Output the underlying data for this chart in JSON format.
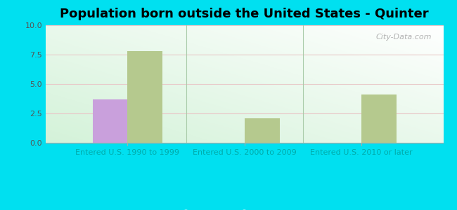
{
  "title": "Population born outside the United States - Quinter",
  "categories": [
    "Entered U.S. 1990 to 1999",
    "Entered U.S. 2000 to 2009",
    "Entered U.S. 2010 or later"
  ],
  "native_values": [
    3.7,
    0,
    0
  ],
  "foreign_values": [
    7.8,
    2.1,
    4.1
  ],
  "native_color": "#c9a0dc",
  "foreign_color": "#b5c98e",
  "background_outer": "#00e0f0",
  "ylim": [
    0,
    10
  ],
  "yticks": [
    0,
    2.5,
    5,
    7.5,
    10
  ],
  "bar_width": 0.3,
  "title_fontsize": 13,
  "tick_fontsize": 8,
  "legend_fontsize": 9,
  "watermark": "City-Data.com",
  "xlabel_color": "#00aaaa",
  "ytick_color": "#555555",
  "grid_color": "#e8c8c8",
  "bg_left_bottom": "#c8e6c9",
  "bg_right_top": "#f0fff8"
}
